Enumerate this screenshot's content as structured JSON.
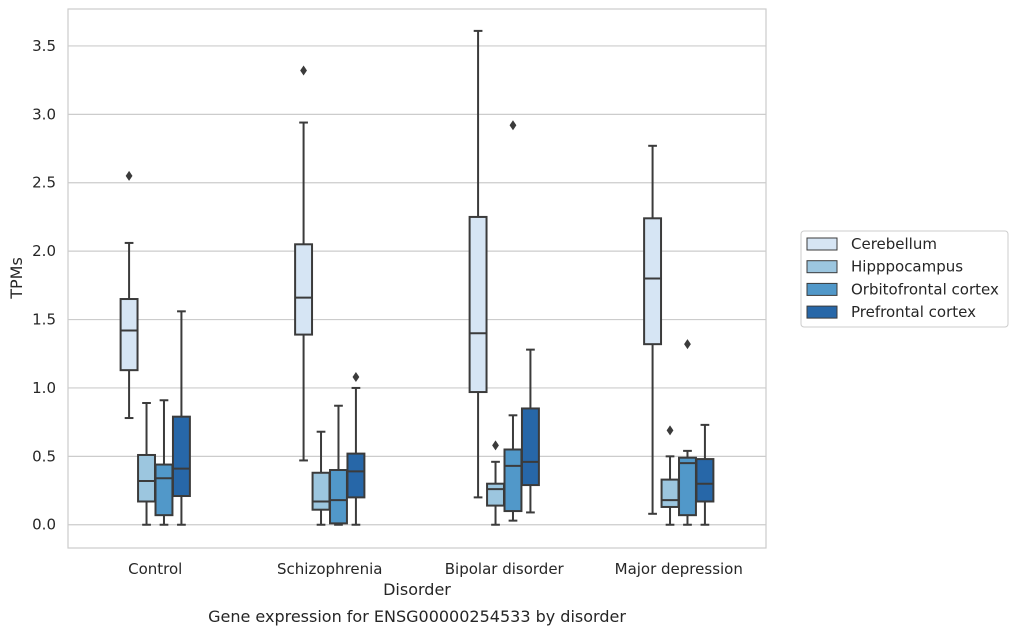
{
  "chart_data": {
    "type": "boxplot",
    "title": "",
    "caption": "Gene expression for ENSG00000254533 by disorder",
    "xlabel": "Disorder",
    "ylabel": "TPMs",
    "ylim": [
      -0.17,
      3.77
    ],
    "yticks": [
      0.0,
      0.5,
      1.0,
      1.5,
      2.0,
      2.5,
      3.0,
      3.5
    ],
    "ytick_labels": [
      "0.0",
      "0.5",
      "1.0",
      "1.5",
      "2.0",
      "2.5",
      "3.0",
      "3.5"
    ],
    "grid": "horizontal",
    "legend_position": "right",
    "categories": [
      "Control",
      "Schizophrenia",
      "Bipolar disorder",
      "Major depression"
    ],
    "series": [
      {
        "name": "Cerebellum",
        "color": "#d6e5f4",
        "boxes": [
          {
            "q1": 1.13,
            "median": 1.42,
            "q3": 1.65,
            "whislo": 0.78,
            "whishi": 2.06,
            "fliers": [
              2.55
            ]
          },
          {
            "q1": 1.39,
            "median": 1.66,
            "q3": 2.05,
            "whislo": 0.47,
            "whishi": 2.94,
            "fliers": [
              3.32
            ]
          },
          {
            "q1": 0.97,
            "median": 1.4,
            "q3": 2.25,
            "whislo": 0.2,
            "whishi": 3.61,
            "fliers": []
          },
          {
            "q1": 1.32,
            "median": 1.8,
            "q3": 2.24,
            "whislo": 0.08,
            "whishi": 2.77,
            "fliers": []
          }
        ]
      },
      {
        "name": "Hipppocampus",
        "color": "#9cc6df",
        "boxes": [
          {
            "q1": 0.17,
            "median": 0.32,
            "q3": 0.51,
            "whislo": 0.0,
            "whishi": 0.89,
            "fliers": []
          },
          {
            "q1": 0.11,
            "median": 0.17,
            "q3": 0.38,
            "whislo": 0.0,
            "whishi": 0.68,
            "fliers": []
          },
          {
            "q1": 0.14,
            "median": 0.26,
            "q3": 0.3,
            "whislo": 0.0,
            "whishi": 0.46,
            "fliers": [
              0.58
            ]
          },
          {
            "q1": 0.13,
            "median": 0.18,
            "q3": 0.33,
            "whislo": 0.0,
            "whishi": 0.5,
            "fliers": [
              0.69
            ]
          }
        ]
      },
      {
        "name": "Orbitofrontal cortex",
        "color": "#5198c9",
        "boxes": [
          {
            "q1": 0.07,
            "median": 0.34,
            "q3": 0.44,
            "whislo": 0.0,
            "whishi": 0.91,
            "fliers": []
          },
          {
            "q1": 0.01,
            "median": 0.18,
            "q3": 0.4,
            "whislo": 0.0,
            "whishi": 0.87,
            "fliers": []
          },
          {
            "q1": 0.1,
            "median": 0.43,
            "q3": 0.55,
            "whislo": 0.03,
            "whishi": 0.8,
            "fliers": [
              2.92
            ]
          },
          {
            "q1": 0.07,
            "median": 0.45,
            "q3": 0.49,
            "whislo": 0.0,
            "whishi": 0.54,
            "fliers": [
              1.32
            ]
          }
        ]
      },
      {
        "name": "Prefrontal cortex",
        "color": "#2767a8",
        "boxes": [
          {
            "q1": 0.21,
            "median": 0.41,
            "q3": 0.79,
            "whislo": 0.0,
            "whishi": 1.56,
            "fliers": []
          },
          {
            "q1": 0.2,
            "median": 0.39,
            "q3": 0.52,
            "whislo": 0.0,
            "whishi": 1.0,
            "fliers": [
              1.08
            ]
          },
          {
            "q1": 0.29,
            "median": 0.46,
            "q3": 0.85,
            "whislo": 0.09,
            "whishi": 1.28,
            "fliers": []
          },
          {
            "q1": 0.17,
            "median": 0.3,
            "q3": 0.48,
            "whislo": 0.0,
            "whishi": 0.73,
            "fliers": []
          }
        ]
      }
    ]
  }
}
